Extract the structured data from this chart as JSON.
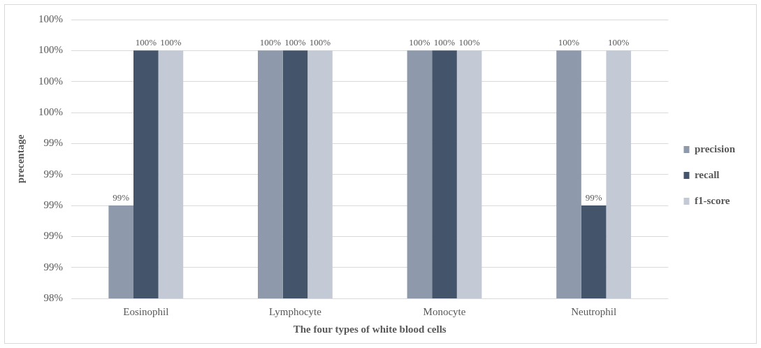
{
  "chart_data": {
    "type": "bar",
    "xlabel": "The four types of white blood cells",
    "ylabel": "precentage",
    "categories": [
      "Eosinophil",
      "Lymphocyte",
      "Monocyte",
      "Neutrophil"
    ],
    "series": [
      {
        "name": "precision",
        "color": "#8e99ab",
        "values": [
          99.0,
          100.0,
          100.0,
          100.0
        ],
        "value_labels": [
          "99%",
          "100%",
          "100%",
          "100%"
        ]
      },
      {
        "name": "recall",
        "color": "#44546a",
        "values": [
          100.0,
          100.0,
          100.0,
          99.0
        ],
        "value_labels": [
          "100%",
          "100%",
          "100%",
          "99%"
        ]
      },
      {
        "name": "f1-score",
        "color": "#c3cad6",
        "values": [
          100.0,
          100.0,
          100.0,
          100.0
        ],
        "value_labels": [
          "100%",
          "100%",
          "100%",
          "100%"
        ]
      }
    ],
    "ylim": [
      98.4,
      100.2
    ],
    "yticks": [
      {
        "value": 98.4,
        "label": "98%"
      },
      {
        "value": 98.6,
        "label": "99%"
      },
      {
        "value": 98.8,
        "label": "99%"
      },
      {
        "value": 99.0,
        "label": "99%"
      },
      {
        "value": 99.2,
        "label": "99%"
      },
      {
        "value": 99.4,
        "label": "99%"
      },
      {
        "value": 99.6,
        "label": "100%"
      },
      {
        "value": 99.8,
        "label": "100%"
      },
      {
        "value": 100.0,
        "label": "100%"
      },
      {
        "value": 100.2,
        "label": "100%"
      }
    ],
    "grid": "y",
    "legend": "right"
  }
}
